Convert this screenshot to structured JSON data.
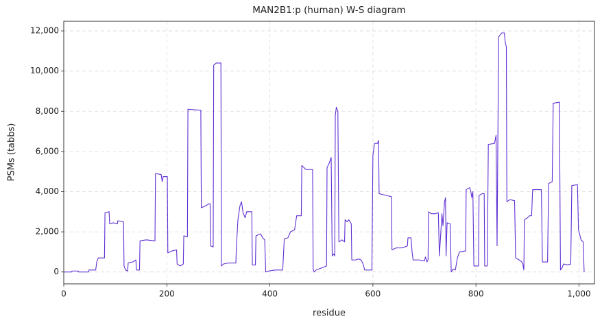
{
  "chart_data": {
    "type": "line",
    "title": "MAN2B1:p (human) W-S diagram",
    "x_label": "residue",
    "y_label": "PSMs (tabbs)",
    "color": "#5f2fd3",
    "grid": true,
    "xlim": [
      0,
      1030
    ],
    "ylim": [
      -590,
      12480
    ],
    "xticks": [
      0,
      200,
      400,
      600,
      800,
      {
        "value": 1000,
        "label": "1,000"
      }
    ],
    "yticks": [
      0,
      {
        "value": 2000,
        "label": "2,000"
      },
      {
        "value": 4000,
        "label": "4,000"
      },
      {
        "value": 6000,
        "label": "6,000"
      },
      {
        "value": 8000,
        "label": "8,000"
      },
      {
        "value": 10000,
        "label": "10,000"
      },
      {
        "value": 12000,
        "label": "12,000"
      }
    ],
    "x": [
      0,
      15,
      16,
      28,
      29,
      48,
      49,
      62,
      64,
      67,
      79,
      80,
      88,
      89,
      96,
      104,
      105,
      116,
      117,
      120,
      124,
      125,
      134,
      140,
      141,
      147,
      148,
      160,
      177,
      178,
      189,
      191,
      193,
      201,
      202,
      210,
      219,
      220,
      226,
      232,
      233,
      240,
      241,
      266,
      267,
      276,
      282,
      284,
      285,
      290,
      291,
      296,
      305,
      306,
      310,
      320,
      334,
      335,
      338,
      342,
      345,
      348,
      352,
      355,
      365,
      366,
      372,
      373,
      382,
      386,
      390,
      392,
      398,
      410,
      425,
      426,
      428,
      435,
      440,
      448,
      452,
      461,
      462,
      466,
      470,
      483,
      484,
      486,
      490,
      500,
      510,
      511,
      515,
      519,
      521,
      524,
      526,
      527,
      529,
      532,
      534,
      540,
      545,
      546,
      550,
      553,
      558,
      559,
      567,
      572,
      577,
      581,
      584,
      598,
      600,
      603,
      609,
      611,
      612,
      620,
      628,
      636,
      637,
      645,
      655,
      662,
      667,
      668,
      674,
      676,
      678,
      690,
      700,
      702,
      705,
      707,
      708,
      713,
      721,
      727,
      729,
      734,
      736,
      739,
      741,
      742,
      744,
      750,
      752,
      756,
      760,
      764,
      768,
      780,
      781,
      788,
      790,
      792,
      794,
      796,
      805,
      806,
      812,
      816,
      817,
      822,
      824,
      836,
      839,
      841,
      844,
      847,
      850,
      855,
      857,
      859,
      860,
      866,
      875,
      877,
      884,
      889,
      891,
      893,
      894,
      900,
      904,
      908,
      910,
      927,
      929,
      939,
      941,
      948,
      950,
      962,
      964,
      967,
      970,
      978,
      984,
      986,
      997,
      999,
      1004,
      1008,
      1010
    ],
    "values": [
      0,
      0,
      50,
      50,
      0,
      0,
      100,
      100,
      500,
      700,
      700,
      2950,
      3000,
      2400,
      2450,
      2400,
      2550,
      2500,
      300,
      100,
      50,
      450,
      500,
      600,
      100,
      100,
      1550,
      1600,
      1550,
      4900,
      4850,
      4500,
      4750,
      4750,
      950,
      1050,
      1100,
      400,
      300,
      400,
      1800,
      1750,
      8100,
      8050,
      3200,
      3300,
      3400,
      3400,
      1300,
      1250,
      10300,
      10400,
      10400,
      300,
      400,
      450,
      450,
      1200,
      2600,
      3300,
      3500,
      2950,
      2700,
      3000,
      3000,
      350,
      350,
      1800,
      1900,
      1700,
      1600,
      0,
      50,
      100,
      100,
      650,
      1650,
      1700,
      2000,
      2100,
      2800,
      2800,
      5300,
      5200,
      5100,
      5100,
      150,
      0,
      100,
      200,
      300,
      5200,
      5400,
      5700,
      800,
      900,
      800,
      7800,
      8200,
      8000,
      1500,
      1600,
      1500,
      2600,
      2500,
      2600,
      2400,
      600,
      600,
      650,
      600,
      400,
      100,
      100,
      5800,
      6400,
      6400,
      6550,
      3900,
      3850,
      3800,
      3750,
      1100,
      1200,
      1200,
      1250,
      1300,
      1700,
      1700,
      1000,
      600,
      600,
      550,
      750,
      500,
      600,
      3000,
      2900,
      2900,
      2950,
      800,
      2900,
      2300,
      3500,
      3700,
      800,
      2450,
      2400,
      0,
      150,
      100,
      700,
      1000,
      1050,
      4100,
      4200,
      4000,
      3700,
      4000,
      300,
      300,
      3800,
      3900,
      3900,
      300,
      300,
      6350,
      6400,
      6800,
      1300,
      11700,
      11800,
      11900,
      11900,
      11400,
      11200,
      3500,
      3600,
      3550,
      700,
      600,
      500,
      400,
      100,
      2600,
      2700,
      2800,
      2800,
      4100,
      4100,
      500,
      500,
      4400,
      4500,
      8400,
      8450,
      100,
      200,
      400,
      350,
      400,
      4300,
      4350,
      2100,
      1600,
      1500,
      0
    ]
  }
}
